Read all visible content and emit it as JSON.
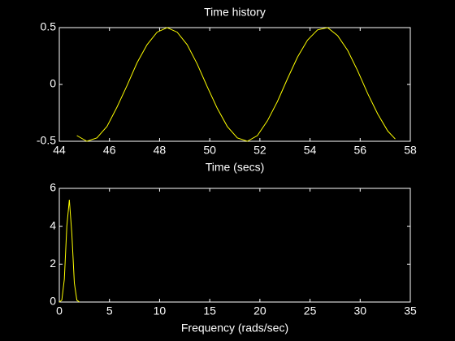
{
  "chart_data": [
    {
      "type": "line",
      "title": "Time history",
      "x_label": "Time (secs)",
      "x": [
        44.7,
        45.1,
        45.5,
        45.9,
        46.3,
        46.7,
        47.1,
        47.5,
        47.9,
        48.3,
        48.7,
        49.1,
        49.5,
        49.9,
        50.3,
        50.7,
        51.1,
        51.5,
        51.9,
        52.3,
        52.7,
        53.1,
        53.5,
        53.9,
        54.3,
        54.7,
        55.1,
        55.5,
        55.9,
        56.3,
        56.7,
        57.1,
        57.4
      ],
      "values": [
        -0.45,
        -0.5,
        -0.47,
        -0.37,
        -0.2,
        -0.01,
        0.19,
        0.35,
        0.46,
        0.5,
        0.46,
        0.35,
        0.18,
        -0.02,
        -0.21,
        -0.37,
        -0.47,
        -0.5,
        -0.45,
        -0.32,
        -0.15,
        0.05,
        0.24,
        0.39,
        0.48,
        0.5,
        0.43,
        0.3,
        0.12,
        -0.08,
        -0.26,
        -0.41,
        -0.48
      ],
      "color": "#ffff00",
      "xlim": [
        44,
        58
      ],
      "xticks": [
        44,
        46,
        48,
        50,
        52,
        54,
        56,
        58
      ],
      "ylim": [
        -0.5,
        0.5
      ],
      "yticks": [
        -0.5,
        0,
        0.5
      ]
    },
    {
      "type": "line",
      "x_label": "Frequency (rads/sec)",
      "x": [
        0,
        0.25,
        0.5,
        0.75,
        1,
        1.25,
        1.5,
        1.75,
        2
      ],
      "values": [
        0,
        0.1,
        1.2,
        4.0,
        5.4,
        3.6,
        1.0,
        0.1,
        0
      ],
      "color": "#ffff00",
      "xlim": [
        0,
        35
      ],
      "xticks": [
        0,
        5,
        10,
        15,
        20,
        25,
        30,
        35
      ],
      "ylim": [
        0,
        6
      ],
      "yticks": [
        0,
        2,
        4,
        6
      ]
    }
  ]
}
